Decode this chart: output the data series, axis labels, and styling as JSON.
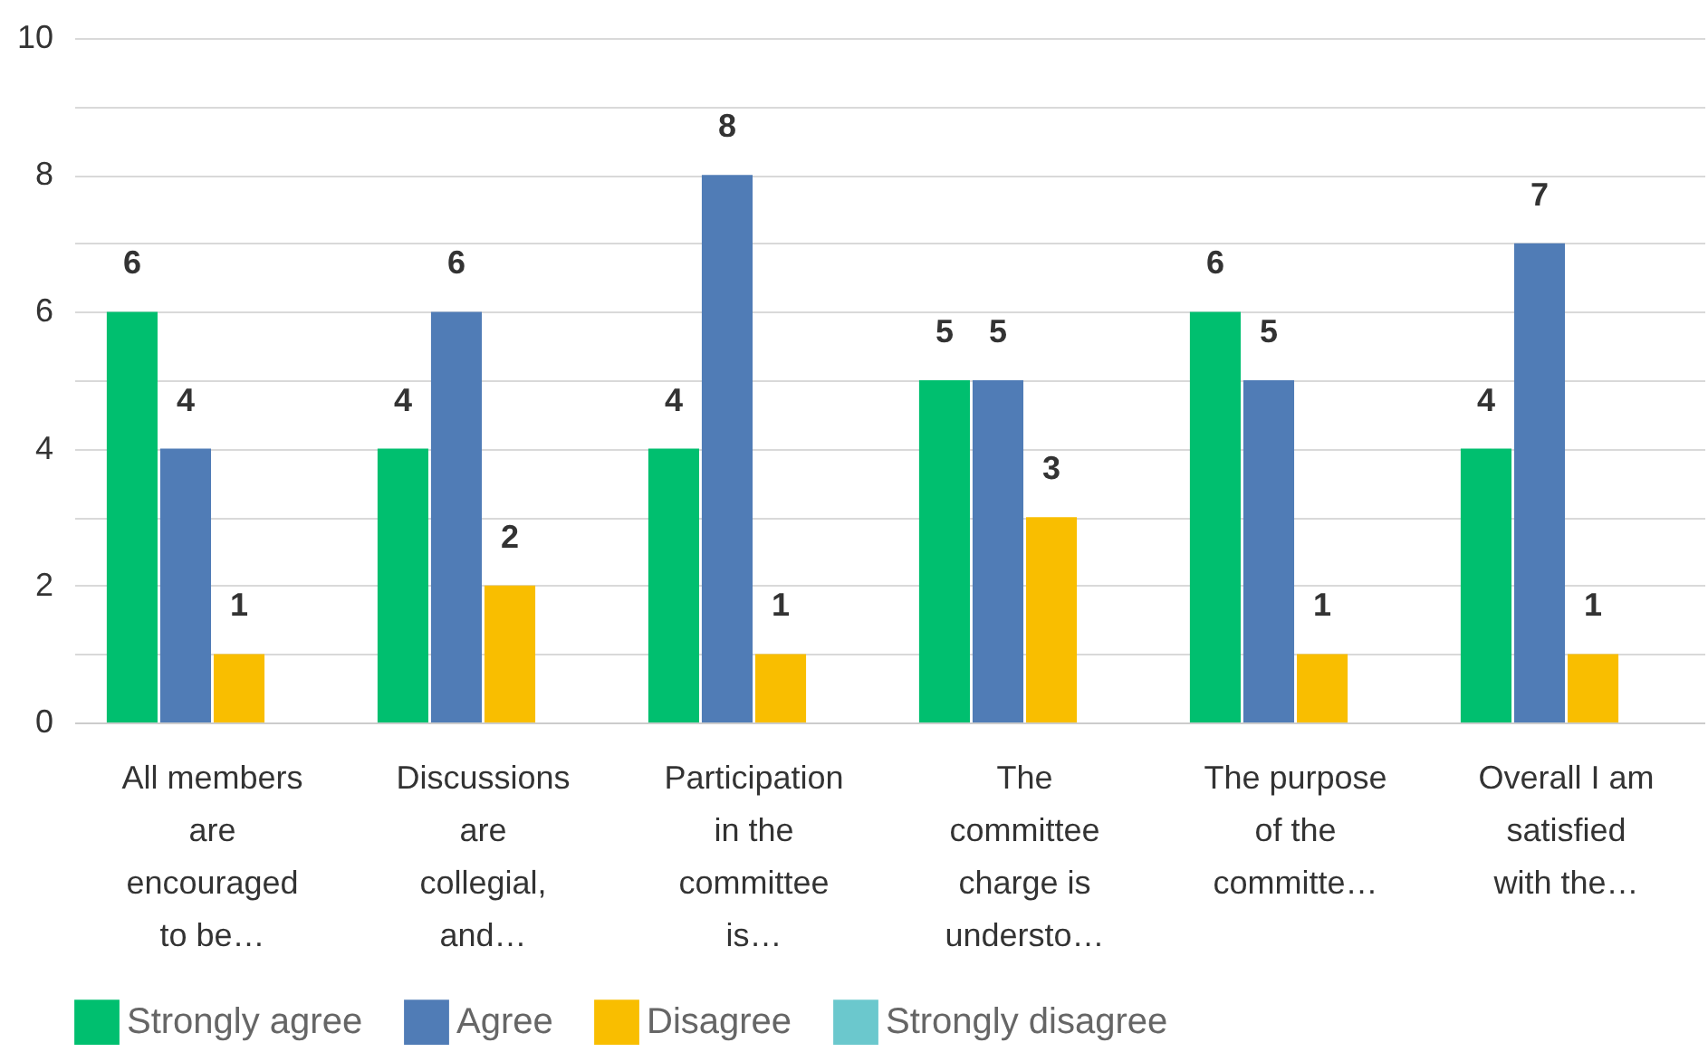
{
  "chart_data": {
    "type": "bar",
    "categories": [
      "All members are encouraged to be…",
      "Discussions are collegial, and…",
      "Participation in the committee is…",
      "The committee charge is understo…",
      "The purpose of the committe…",
      "Overall I am satisfied with the…"
    ],
    "series": [
      {
        "name": "Strongly agree",
        "color": "#00bf6f",
        "values": [
          6,
          4,
          4,
          5,
          6,
          4
        ],
        "value_labels": [
          "6",
          "4",
          "4",
          "5",
          "6",
          "4"
        ]
      },
      {
        "name": "Agree",
        "color": "#507cb6",
        "values": [
          4,
          6,
          8,
          5,
          5,
          7
        ],
        "value_labels": [
          "4",
          "6",
          "8",
          "5",
          "5",
          "7"
        ]
      },
      {
        "name": "Disagree",
        "color": "#f9be00",
        "values": [
          1,
          2,
          1,
          3,
          1,
          1
        ],
        "value_labels": [
          "1",
          "2",
          "1",
          "3",
          "1",
          "1"
        ]
      },
      {
        "name": "Strongly disagree",
        "color": "#6bc8cd",
        "values": [
          0,
          0,
          0,
          0,
          0,
          0
        ],
        "value_labels": [
          null,
          null,
          null,
          null,
          null,
          null
        ]
      }
    ],
    "ylim": [
      0,
      10
    ],
    "yticks": [
      0,
      {
        "value": 1,
        "label": null
      },
      2,
      {
        "value": 3,
        "label": null
      },
      4,
      {
        "value": 5,
        "label": null
      },
      6,
      {
        "value": 7,
        "label": null
      },
      8,
      {
        "value": 9,
        "label": null
      },
      10
    ],
    "grid": "y",
    "legend": "bottom"
  }
}
